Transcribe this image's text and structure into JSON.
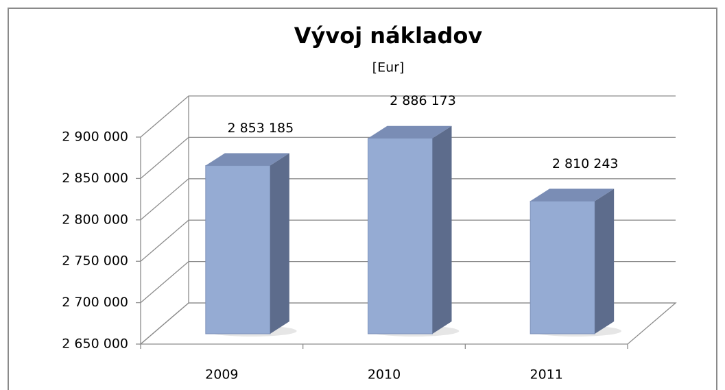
{
  "chart_data": {
    "type": "bar3d",
    "title": "Vývoj nákladov",
    "subtitle": "[Eur]",
    "categories": [
      "2009",
      "2010",
      "2011"
    ],
    "values": [
      2853185,
      2886173,
      2810243
    ],
    "value_labels": [
      "2 853 185",
      "2 886 173",
      "2 810 243"
    ],
    "color": "#95abd3",
    "ylim": [
      2650000,
      2900000
    ],
    "yticks": [
      {
        "value": 2650000,
        "label": "2 650 000"
      },
      {
        "value": 2700000,
        "label": "2 700 000"
      },
      {
        "value": 2750000,
        "label": "2 750 000"
      },
      {
        "value": 2800000,
        "label": "2 800 000"
      },
      {
        "value": 2850000,
        "label": "2 850 000"
      },
      {
        "value": 2900000,
        "label": "2 900 000"
      }
    ],
    "grid": true
  }
}
